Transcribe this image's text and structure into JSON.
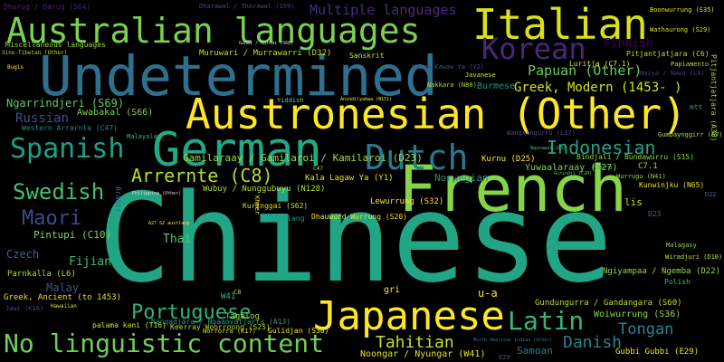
{
  "words": [
    {
      "text": "Chinese",
      "color": "#21a585"
    },
    {
      "text": "French",
      "color": "#86d549"
    },
    {
      "text": "Undetermined",
      "color": "#2e6f8e"
    },
    {
      "text": "Austronesian (Other)",
      "color": "#fde725"
    },
    {
      "text": "Australian languages",
      "color": "#7ad151"
    },
    {
      "text": "German",
      "color": "#22a884"
    },
    {
      "text": "Italian",
      "color": "#d8e219"
    },
    {
      "text": "Japanese",
      "color": "#fde725"
    },
    {
      "text": "Dutch",
      "color": "#29798e"
    },
    {
      "text": "Korean",
      "color": "#482878"
    },
    {
      "text": "Spanish",
      "color": "#1f9e89"
    },
    {
      "text": "Latin",
      "color": "#35b779"
    },
    {
      "text": "No linguistic content",
      "color": "#6ece58"
    },
    {
      "text": "Swedish",
      "color": "#44bf70"
    },
    {
      "text": "Maori",
      "color": "#3e4a89"
    },
    {
      "text": "Portuguese",
      "color": "#2db27d"
    },
    {
      "text": "Indonesian",
      "color": "#20a386"
    },
    {
      "text": "Arrernte (C8)",
      "color": "#b5de2b"
    },
    {
      "text": "Tahitian",
      "color": "#c2df23"
    },
    {
      "text": "Danish",
      "color": "#26828e"
    },
    {
      "text": "Tongan",
      "color": "#25848e"
    },
    {
      "text": "Gamilaraay / Gamilaroi / Kamilaroi (D23)",
      "color": "#a2da37"
    },
    {
      "text": "Greek, Modern (1453- )",
      "color": "#d2e21b"
    },
    {
      "text": "Papuan (Other)",
      "color": "#65cb5e"
    },
    {
      "text": "Multiple languages",
      "color": "#472d7b"
    },
    {
      "text": "Russian",
      "color": "#3b528b"
    },
    {
      "text": "Fijian",
      "color": "#3fbc73"
    },
    {
      "text": "Finnish",
      "color": "#440154"
    },
    {
      "text": "Thai",
      "color": "#52c569"
    },
    {
      "text": "Ngarrindjeri (S69)",
      "color": "#5ec962"
    },
    {
      "text": "Czech",
      "color": "#31678e"
    },
    {
      "text": "Malay",
      "color": "#3b528b"
    },
    {
      "text": "Norwegian",
      "color": "#238a8d"
    },
    {
      "text": "Samoan",
      "color": "#277f8e"
    },
    {
      "text": "Burmese",
      "color": "#1f958b"
    },
    {
      "text": "Pintupi (C10)",
      "color": "#7fd34e"
    },
    {
      "text": "Awabakal (S66)",
      "color": "#81d34d"
    },
    {
      "text": "Kala Lagaw Ya (Y1)",
      "color": "#e2e418"
    },
    {
      "text": "Wubuy / Nunggubuyu (N128)",
      "color": "#addc30"
    },
    {
      "text": "Yuwaalaraay (D27)",
      "color": "#89d548"
    },
    {
      "text": "Woiwurrung (S36)",
      "color": "#8bd646"
    },
    {
      "text": "Gundungurra / Gandangara (S60)",
      "color": "#bddf26"
    },
    {
      "text": "Ngiyampaa / Ngemba (D22)",
      "color": "#98d83e"
    },
    {
      "text": "Noongar / Nyungar (W41)",
      "color": "#e5e419"
    },
    {
      "text": "Greek, Ancient (to 1453)",
      "color": "#e7e419"
    },
    {
      "text": "Parnkalla (L6)",
      "color": "#b0dd2f"
    },
    {
      "text": "Kurnu (D25)",
      "color": "#fde725"
    },
    {
      "text": "Lewurrung (S32)",
      "color": "#f8e621"
    },
    {
      "text": "Kuringgai (S62)",
      "color": "#d0e11c"
    },
    {
      "text": "Dhauwurd Wurrung (S20)",
      "color": "#f1e51d"
    },
    {
      "text": "Keerray Woorroong (S25)",
      "color": "#abdc31"
    },
    {
      "text": "Tagalog",
      "color": "#a5db36"
    },
    {
      "text": "Gulidjan (S30)",
      "color": "#f4e61e"
    },
    {
      "text": "Gubbi Gubbi (E29)",
      "color": "#f6e620"
    },
    {
      "text": "Kunwinjku (N65)",
      "color": "#ebe51a"
    },
    {
      "text": "Gumbaynggirr (E7)",
      "color": "#aadc32"
    },
    {
      "text": "Bindjali / Bundawurru (S15)",
      "color": "#90d743"
    },
    {
      "text": "Pitjantjatjara (C6)",
      "color": "#bbdf27"
    },
    {
      "text": "Luritja (C7.1)",
      "color": "#e1e318"
    },
    {
      "text": "Nakkara (N80)",
      "color": "#a8db34"
    },
    {
      "text": "Muruwari / Murrawarri (D32)",
      "color": "#c0df25"
    },
    {
      "text": "Western Arrarnta (C47)",
      "color": "#24868e"
    },
    {
      "text": "Miscellaneous languages",
      "color": "#9dd93b"
    },
    {
      "text": "Sanskrit",
      "color": "#cde11d"
    },
    {
      "text": "Wathaurong (S29)",
      "color": "#d5e21a"
    },
    {
      "text": "Boonwurrung (S35)",
      "color": "#e8e419"
    },
    {
      "text": "Dharug / Darug (S64)",
      "color": "#482475"
    },
    {
      "text": "Dharawal / Tharawal (S59)",
      "color": "#3e4c8a"
    },
    {
      "text": "Kalaw Kawaw Ya (Y2)",
      "color": "#3d4d8a"
    },
    {
      "text": "Pitjantjatjara (A38)",
      "color": "#9fda3a"
    },
    {
      "text": "Papiamento",
      "color": "#b2dd2d"
    },
    {
      "text": "Polish",
      "color": "#3fbc73"
    },
    {
      "text": "Naiya / Nawu (L4)",
      "color": "#433e85"
    },
    {
      "text": "Wiradjuri (D10)",
      "color": "#c8e020"
    },
    {
      "text": "Malagasy",
      "color": "#8fd744"
    },
    {
      "text": "Norrorra (K17)",
      "color": "#d0e11c"
    },
    {
      "text": "Wangkangurru (L17)",
      "color": "#3e4c8a"
    },
    {
      "text": "Arabic",
      "color": "#2c728e"
    },
    {
      "text": "Yiddish",
      "color": "#70cf57"
    },
    {
      "text": "Javanese",
      "color": "#d3e21b"
    },
    {
      "text": "austlang",
      "color": "#1e9c89"
    },
    {
      "text": "Malayalam",
      "color": "#35b779"
    },
    {
      "text": "Khmer",
      "color": "#fde725"
    },
    {
      "text": "Wurrugu (N41)",
      "color": "#98d83e"
    },
    {
      "text": "Hawaiian",
      "color": "#e2e418"
    },
    {
      "text": "palama kani (T16)",
      "color": "#d2e21b"
    },
    {
      "text": "North American Indian (Other)",
      "color": "#2c728e"
    },
    {
      "text": "Jawi (K16)",
      "color": "#3e4c8a"
    },
    {
      "text": "Nangadjara / Ngaanyatjarra (A13)",
      "color": "#1f988b"
    },
    {
      "text": "Bugis",
      "color": "#fde725"
    },
    {
      "text": "Sino-Tibetan (Other)",
      "color": "#b5de2b"
    },
    {
      "text": "mtt",
      "color": "#1f9e89"
    },
    {
      "text": "C7.1",
      "color": "#a0da39"
    },
    {
      "text": "gri",
      "color": "#fde725"
    },
    {
      "text": "u-a",
      "color": "#fde725"
    },
    {
      "text": "lis",
      "color": "#c2df23"
    },
    {
      "text": "C47",
      "color": "#b8de29"
    },
    {
      "text": "E29",
      "color": "#3a548c"
    },
    {
      "text": "D23",
      "color": "#2e6e8e"
    },
    {
      "text": "D22",
      "color": "#32658e"
    },
    {
      "text": "W41",
      "color": "#35b779"
    },
    {
      "text": "C8",
      "color": "#b8de29"
    },
    {
      "text": "Nauru",
      "color": "#2db27d"
    },
    {
      "text": "Gunai / Kurnai (S68)",
      "color": "#ddd"
    },
    {
      "text": "Philippine (Other)",
      "color": "#ddd"
    },
    {
      "text": "A27 S2 austlang",
      "color": "#fde725"
    },
    {
      "text": "Anindilyakwa (N151)",
      "color": "#fde725"
    },
    {
      "text": "Ngunawal (D3)",
      "color": "#4ac16d"
    },
    {
      "text": "Gurindji (C20)",
      "color": "#5ec962"
    }
  ]
}
